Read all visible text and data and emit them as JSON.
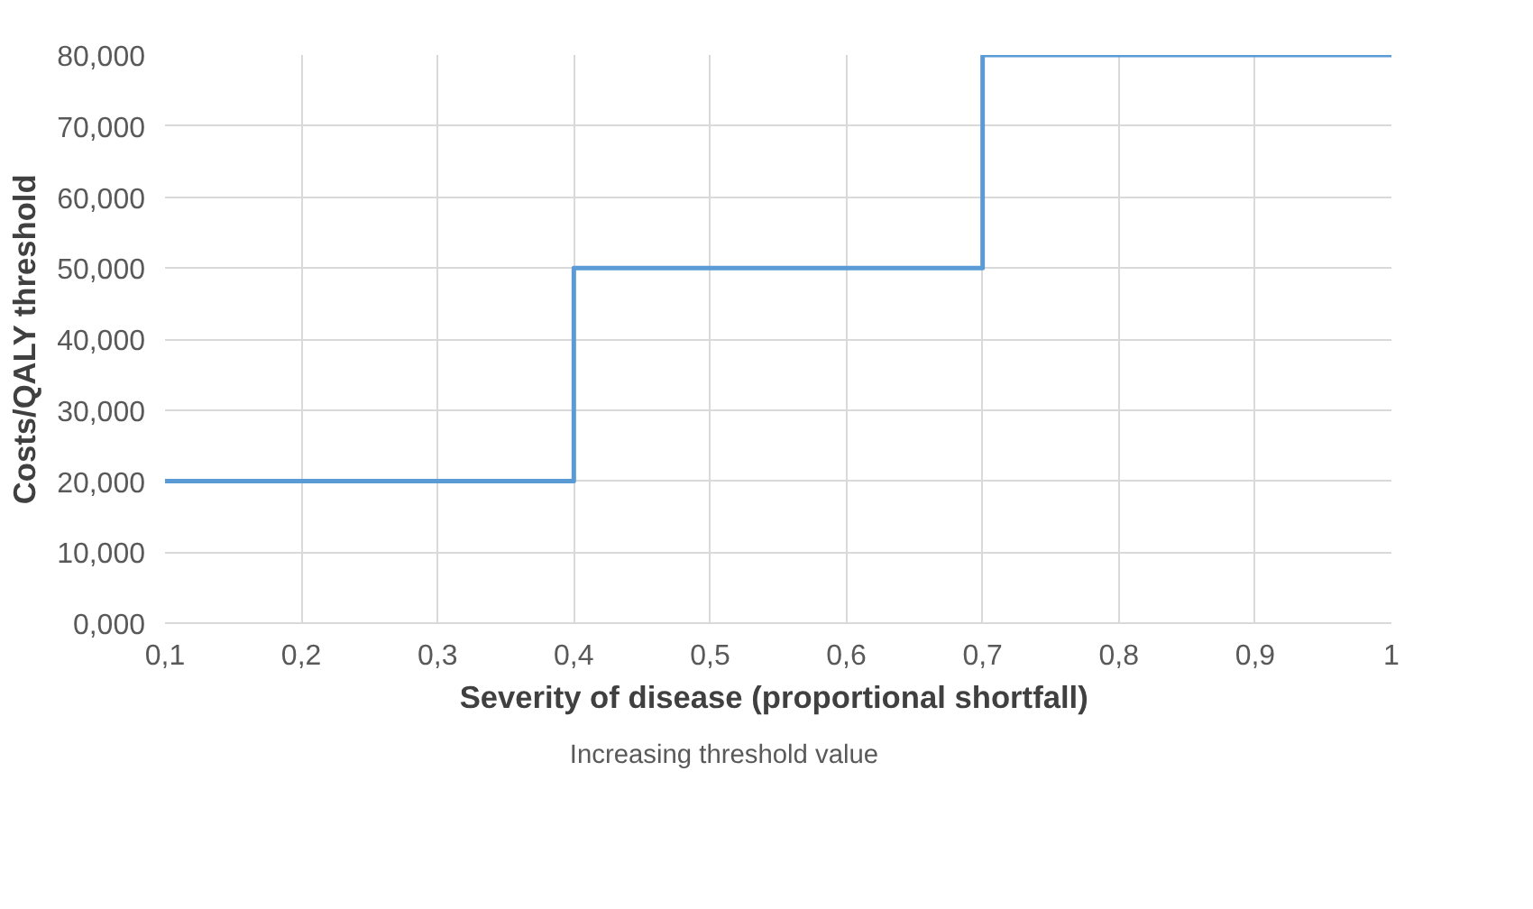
{
  "chart_data": {
    "type": "step",
    "xlabel": "Severity of disease (proportional  shortfall)",
    "ylabel": "Costs/QALY threshold",
    "x": [
      0.1,
      0.4,
      0.7,
      1
    ],
    "series": [
      {
        "name": "Increasing threshold value",
        "color": "#5b9bd5",
        "values": [
          20,
          50,
          80,
          80
        ]
      }
    ],
    "xlim": [
      0.1,
      1
    ],
    "ylim": [
      0,
      80
    ],
    "xticks": [
      {
        "value": 0.1,
        "label": "0,1"
      },
      {
        "value": 0.2,
        "label": "0,2"
      },
      {
        "value": 0.3,
        "label": "0,3"
      },
      {
        "value": 0.4,
        "label": "0,4"
      },
      {
        "value": 0.5,
        "label": "0,5"
      },
      {
        "value": 0.6,
        "label": "0,6"
      },
      {
        "value": 0.7,
        "label": "0,7"
      },
      {
        "value": 0.8,
        "label": "0,8"
      },
      {
        "value": 0.9,
        "label": "0,9"
      },
      1
    ],
    "yticks": [
      {
        "value": 0,
        "label": "0,000"
      },
      {
        "value": 10,
        "label": "10,000"
      },
      {
        "value": 20,
        "label": "20,000"
      },
      {
        "value": 30,
        "label": "30,000"
      },
      {
        "value": 40,
        "label": "40,000"
      },
      {
        "value": 50,
        "label": "50,000"
      },
      {
        "value": 60,
        "label": "60,000"
      },
      {
        "value": 70,
        "label": "70,000"
      },
      {
        "value": 80,
        "label": "80,000"
      }
    ],
    "grid": true,
    "legend": "bottom",
    "line_style": "solid"
  }
}
